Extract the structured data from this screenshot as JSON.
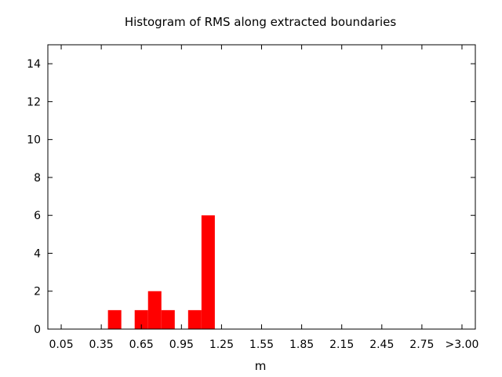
{
  "chart_data": {
    "type": "bar",
    "title": "Histogram of RMS along extracted boundaries",
    "xlabel": "m",
    "ylabel": "",
    "bin_width": 0.1,
    "bins": [
      {
        "center": 0.05,
        "value": 0
      },
      {
        "center": 0.15,
        "value": 0
      },
      {
        "center": 0.25,
        "value": 0
      },
      {
        "center": 0.35,
        "value": 0
      },
      {
        "center": 0.45,
        "value": 1
      },
      {
        "center": 0.55,
        "value": 0
      },
      {
        "center": 0.65,
        "value": 1
      },
      {
        "center": 0.75,
        "value": 2
      },
      {
        "center": 0.85,
        "value": 1
      },
      {
        "center": 0.95,
        "value": 0
      },
      {
        "center": 1.05,
        "value": 1
      },
      {
        "center": 1.15,
        "value": 6
      },
      {
        "center": 1.25,
        "value": 0
      },
      {
        "center": 1.35,
        "value": 0
      },
      {
        "center": 1.45,
        "value": 0
      },
      {
        "center": 1.55,
        "value": 0
      },
      {
        "center": 1.65,
        "value": 0
      },
      {
        "center": 1.75,
        "value": 0
      },
      {
        "center": 1.85,
        "value": 0
      },
      {
        "center": 1.95,
        "value": 0
      },
      {
        "center": 2.05,
        "value": 0
      },
      {
        "center": 2.15,
        "value": 0
      },
      {
        "center": 2.25,
        "value": 0
      },
      {
        "center": 2.35,
        "value": 0
      },
      {
        "center": 2.45,
        "value": 0
      },
      {
        "center": 2.55,
        "value": 0
      },
      {
        "center": 2.65,
        "value": 0
      },
      {
        "center": 2.75,
        "value": 0
      },
      {
        "center": 2.85,
        "value": 0
      },
      {
        "center": 2.95,
        "value": 0
      }
    ],
    "xticks": [
      {
        "value": 0.05,
        "label": "0.05"
      },
      {
        "value": 0.35,
        "label": "0.35"
      },
      {
        "value": 0.65,
        "label": "0.65"
      },
      {
        "value": 0.95,
        "label": "0.95"
      },
      {
        "value": 1.25,
        "label": "1.25"
      },
      {
        "value": 1.55,
        "label": "1.55"
      },
      {
        "value": 1.85,
        "label": "1.85"
      },
      {
        "value": 2.15,
        "label": "2.15"
      },
      {
        "value": 2.45,
        "label": "2.45"
      },
      {
        "value": 2.75,
        "label": "2.75"
      },
      {
        "value": 3.05,
        "label": ">3.00"
      }
    ],
    "yticks": [
      0,
      2,
      4,
      6,
      8,
      10,
      12,
      14
    ],
    "xlim": [
      -0.05,
      3.15
    ],
    "ylim": [
      0,
      15
    ],
    "bar_color": "#ff0000",
    "grid": false,
    "legend": "none"
  }
}
